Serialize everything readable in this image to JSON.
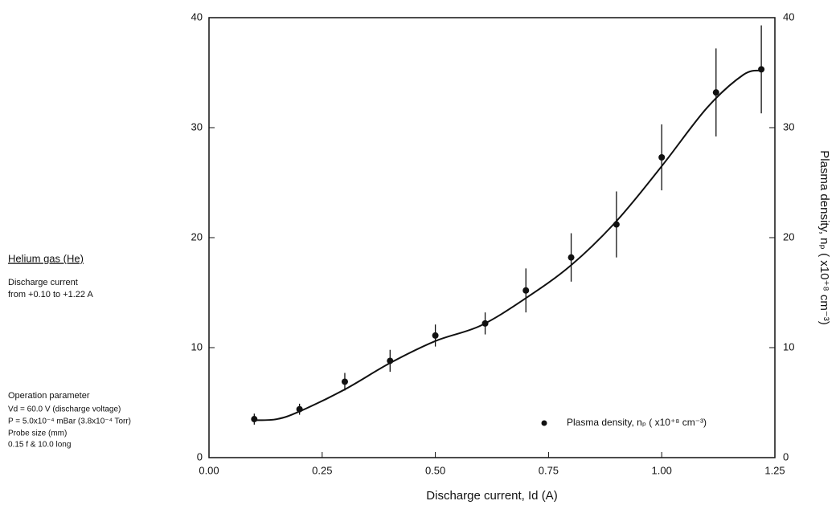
{
  "chart_data": {
    "type": "scatter",
    "x_label": "Discharge current, Id (A)",
    "y2_label": "Plasma density, nₚ ( x10⁺⁸ cm⁻³)",
    "xlim": [
      0,
      1.25
    ],
    "xticks": [
      {
        "value": 0,
        "label": "0.00"
      },
      {
        "value": 0.25,
        "label": "0.25"
      },
      {
        "value": 0.5,
        "label": "0.50"
      },
      {
        "value": 0.75,
        "label": "0.75"
      },
      {
        "value": 1,
        "label": "1.00"
      },
      {
        "value": 1.25,
        "label": "1.25"
      }
    ],
    "ylim": [
      0,
      40
    ],
    "yticks": [
      0,
      10,
      20,
      30,
      40
    ],
    "y2lim": [
      0,
      40
    ],
    "y2ticks": [
      0,
      10,
      20,
      30,
      40
    ],
    "x": [
      0.1,
      0.2,
      0.3,
      0.4,
      0.5,
      0.61,
      0.7,
      0.8,
      0.9,
      1.0,
      1.12,
      1.22
    ],
    "series": [
      {
        "name": "Plasma density, nₚ ( x10⁺⁸ cm⁻³)",
        "color": "#111111",
        "values": [
          3.5,
          4.4,
          6.9,
          8.8,
          11.1,
          12.2,
          15.2,
          18.2,
          21.2,
          27.3,
          33.2,
          35.3
        ],
        "errors": [
          0.5,
          0.5,
          0.8,
          1.0,
          1.0,
          1.0,
          2.0,
          2.2,
          3.0,
          3.0,
          4.0,
          4.0
        ]
      }
    ],
    "fit": {
      "color": "#111111",
      "x": [
        0.1,
        0.15,
        0.2,
        0.3,
        0.4,
        0.5,
        0.6,
        0.7,
        0.8,
        0.9,
        1.0,
        1.1,
        1.18,
        1.22
      ],
      "values": [
        3.4,
        3.5,
        4.2,
        6.2,
        8.6,
        10.6,
        12.0,
        14.5,
        17.5,
        21.5,
        26.5,
        31.8,
        34.8,
        35.2
      ]
    },
    "legend": "lower right",
    "annotations": {
      "gas": "Helium gas (He)",
      "current_title": "Discharge current",
      "current_range": "from +0.10 to +1.22 A",
      "params_title": "Operation parameter",
      "voltage": "Vd = 60.0 V  (discharge voltage)",
      "pressure": "P = 5.0x10⁻⁴ mBar (3.8x10⁻⁴ Torr)",
      "probe_title": "Probe size (mm)",
      "probe": "0.15 f & 10.0 long"
    }
  }
}
